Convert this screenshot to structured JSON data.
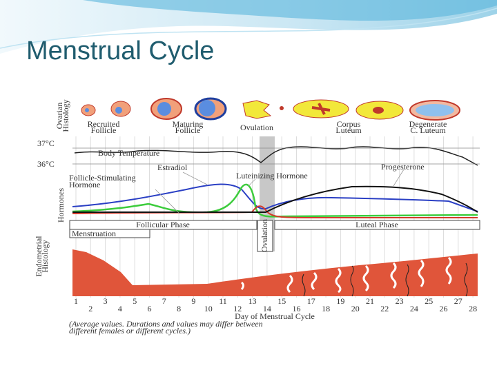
{
  "title": "Menstrual Cycle",
  "diagram": {
    "ovary": {
      "axis_label": [
        "Ovarian",
        "Histology"
      ],
      "stages": [
        [
          "Recruited",
          "Follicle"
        ],
        [
          "Maturing",
          "Follicle"
        ],
        [
          "Ovulation"
        ],
        [
          "Corpus",
          "Luteum"
        ],
        [
          "Degenerate",
          "C. Luteum"
        ]
      ]
    },
    "temperature": {
      "high": "37°C",
      "low": "36°C",
      "label": "Body Temperature"
    },
    "hormones": {
      "axis_label": "Hormones",
      "estradiol": "Estradiol",
      "progesterone": "Progesterone",
      "fsh": [
        "Follicle-Stimulating",
        "Hormone"
      ],
      "lh": "Luteinizing Hormone"
    },
    "phases": {
      "follicular": "Follicular Phase",
      "ovulation": "Ovulation",
      "luteal": "Luteal Phase",
      "menstruation": "Menstruation"
    },
    "endometrium": {
      "axis_label": [
        "Endometrial",
        "Histology"
      ]
    },
    "days": [
      "1",
      "2",
      "3",
      "4",
      "5",
      "6",
      "7",
      "8",
      "9",
      "10",
      "11",
      "12",
      "13",
      "14",
      "15",
      "16",
      "17",
      "18",
      "19",
      "20",
      "21",
      "22",
      "23",
      "24",
      "25",
      "26",
      "27",
      "28"
    ],
    "x_label": "Day of Menstrual Cycle",
    "note": [
      "(Average values. Durations and values may differ between",
      "different females or different cycles.)"
    ]
  }
}
